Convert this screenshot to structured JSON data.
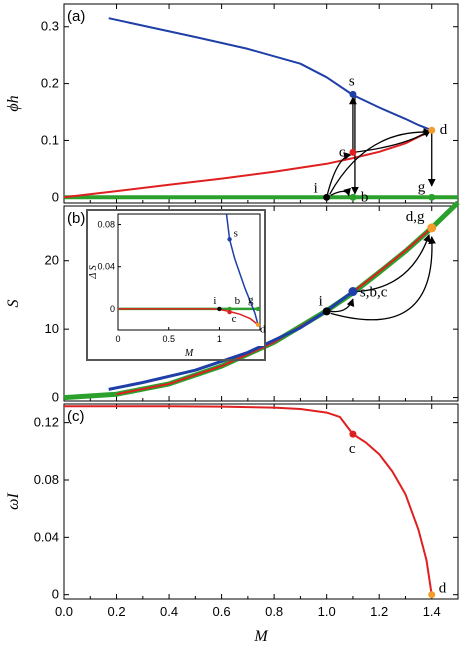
{
  "chart_data": [
    {
      "panel": "(a)",
      "type": "line",
      "xlabel": "",
      "ylabel": "ϕh",
      "xlim": [
        0,
        1.5
      ],
      "ylim": [
        -0.01,
        0.34
      ],
      "yticks": [
        "0",
        "0.1",
        "0.2",
        "0.3"
      ],
      "ytick_values": [
        0,
        0.1,
        0.2,
        0.3
      ],
      "series": [
        {
          "color": "#1f3fa8",
          "x": [
            0.17,
            0.3,
            0.5,
            0.7,
            0.9,
            1.0,
            1.1,
            1.2,
            1.3,
            1.35,
            1.4
          ],
          "y": [
            0.315,
            0.302,
            0.282,
            0.261,
            0.235,
            0.211,
            0.18,
            0.158,
            0.138,
            0.127,
            0.118
          ]
        },
        {
          "color": "#e02020",
          "x": [
            0,
            0.2,
            0.4,
            0.6,
            0.8,
            1.0,
            1.1,
            1.2,
            1.3,
            1.4
          ],
          "y": [
            0,
            0.011,
            0.022,
            0.033,
            0.045,
            0.059,
            0.069,
            0.08,
            0.095,
            0.118
          ]
        },
        {
          "color": "#2ca02c",
          "x": [
            0,
            1.5
          ],
          "y": [
            0,
            0
          ]
        }
      ],
      "points": [
        {
          "label": "s",
          "x": 1.1,
          "y": 0.181,
          "color": "#1f3fa8"
        },
        {
          "label": "c",
          "x": 1.1,
          "y": 0.079,
          "color": "#e02020"
        },
        {
          "label": "d",
          "x": 1.4,
          "y": 0.118,
          "color": "#f39c2b"
        },
        {
          "label": "i",
          "x": 1.0,
          "y": 0,
          "color": "#000000"
        },
        {
          "label": "b",
          "x": 1.1,
          "y": 0,
          "color": "#2ca02c"
        },
        {
          "label": "g",
          "x": 1.4,
          "y": 0,
          "color": "#2ca02c"
        }
      ]
    },
    {
      "panel": "(b)",
      "type": "line",
      "xlabel": "",
      "ylabel": "S",
      "xlim": [
        0,
        1.5
      ],
      "ylim": [
        -0.5,
        28
      ],
      "yticks": [
        "0",
        "10",
        "20"
      ],
      "ytick_values": [
        0,
        10,
        20
      ],
      "series": [
        {
          "color": "#2ca02c",
          "x": [
            0,
            0.2,
            0.4,
            0.6,
            0.8,
            1.0,
            1.1,
            1.2,
            1.3,
            1.4,
            1.5
          ],
          "y": [
            0,
            0.5,
            2.0,
            4.6,
            8.1,
            12.7,
            15.3,
            18.3,
            21.4,
            24.8,
            28.5
          ]
        },
        {
          "color": "#e02020",
          "x": [
            0.2,
            0.4,
            0.6,
            0.8,
            1.0,
            1.1,
            1.2,
            1.3,
            1.4
          ],
          "y": [
            0.5,
            2.0,
            4.6,
            8.1,
            12.7,
            15.4,
            18.4,
            21.5,
            24.8
          ]
        },
        {
          "color": "#1f3fa8",
          "x": [
            0.17,
            0.3,
            0.5,
            0.7,
            0.9,
            1.0,
            1.1
          ],
          "y": [
            1.2,
            2.2,
            4.0,
            6.6,
            10.2,
            12.7,
            15.5
          ]
        }
      ],
      "points": [
        {
          "label": "i",
          "x": 1.0,
          "y": 12.6,
          "color": "#000000"
        },
        {
          "label": "s,b,c",
          "x": 1.1,
          "y": 15.5,
          "color": "#1f3fa8"
        },
        {
          "label": "d,g",
          "x": 1.4,
          "y": 24.8,
          "color": "#f39c2b"
        }
      ],
      "inset": {
        "xlabel": "M",
        "ylabel": "Δ S",
        "xlim": [
          0,
          1.4
        ],
        "ylim": [
          -0.02,
          0.09
        ],
        "xticks": [
          "0",
          "0.5",
          "1"
        ],
        "xtick_values": [
          0,
          0.5,
          1
        ],
        "yticks": [
          "0",
          "0.04",
          "0.08"
        ],
        "ytick_values": [
          0,
          0.04,
          0.08
        ],
        "series": [
          {
            "color": "#2ca02c",
            "x": [
              0,
              1.4
            ],
            "y": [
              0,
              0
            ]
          },
          {
            "color": "#e02020",
            "x": [
              0,
              0.9,
              1.0,
              1.1,
              1.2,
              1.3,
              1.38
            ],
            "y": [
              0,
              0,
              -0.0005,
              -0.0025,
              -0.005,
              -0.009,
              -0.015
            ]
          },
          {
            "color": "#1f3fa8",
            "x": [
              1.07,
              1.1,
              1.15,
              1.2,
              1.25,
              1.3,
              1.35,
              1.38
            ],
            "y": [
              0.09,
              0.066,
              0.048,
              0.034,
              0.02,
              0.008,
              -0.004,
              -0.015
            ]
          }
        ],
        "points": [
          {
            "label": "s",
            "x": 1.1,
            "y": 0.066,
            "color": "#1f3fa8"
          },
          {
            "label": "i",
            "x": 1.0,
            "y": 0,
            "color": "#000000"
          },
          {
            "label": "b",
            "x": 1.1,
            "y": 0,
            "color": "#2ca02c"
          },
          {
            "label": "c",
            "x": 1.1,
            "y": -0.003,
            "color": "#e02020"
          },
          {
            "label": "g",
            "x": 1.38,
            "y": 0,
            "color": "#2ca02c"
          },
          {
            "label": "d",
            "x": 1.38,
            "y": -0.015,
            "color": "#f39c2b"
          }
        ]
      }
    },
    {
      "panel": "(c)",
      "type": "line",
      "xlabel": "M",
      "ylabel": "ωI",
      "xlim": [
        0,
        1.5
      ],
      "ylim": [
        -0.003,
        0.133
      ],
      "xticks": [
        "0.0",
        "0.2",
        "0.4",
        "0.6",
        "0.8",
        "1.0",
        "1.2",
        "1.4"
      ],
      "xtick_values": [
        0,
        0.2,
        0.4,
        0.6,
        0.8,
        1.0,
        1.2,
        1.4
      ],
      "yticks": [
        "0",
        "0.04",
        "0.08",
        "0.12"
      ],
      "ytick_values": [
        0,
        0.04,
        0.08,
        0.12
      ],
      "series": [
        {
          "color": "#e02020",
          "x": [
            0,
            0.2,
            0.4,
            0.6,
            0.8,
            0.9,
            1.0,
            1.05,
            1.1,
            1.15,
            1.2,
            1.25,
            1.3,
            1.35,
            1.38,
            1.4
          ],
          "y": [
            0.1315,
            0.1315,
            0.1314,
            0.1312,
            0.1305,
            0.1295,
            0.127,
            0.124,
            0.112,
            0.106,
            0.098,
            0.086,
            0.07,
            0.045,
            0.024,
            0
          ]
        }
      ],
      "points": [
        {
          "label": "c",
          "x": 1.1,
          "y": 0.112,
          "color": "#e02020"
        },
        {
          "label": "d",
          "x": 1.4,
          "y": 0,
          "color": "#f39c2b"
        }
      ]
    }
  ]
}
